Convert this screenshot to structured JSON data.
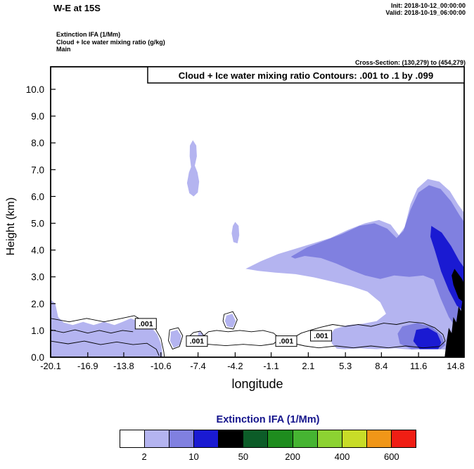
{
  "header": {
    "title": "W-E at 15S",
    "init_label": "Init: 2018-10-12_00:00:00",
    "valid_label": "Valid: 2018-10-19_06:00:00",
    "field_lines": [
      "Extinction IFA  (1/Mm)",
      "Cloud + Ice water mixing ratio  (g/kg)",
      "Main"
    ],
    "cross_section": "Cross-Section: (130,279) to (454,279)"
  },
  "chart_data": {
    "type": "filled-contour-cross-section",
    "title": "Cloud + Ice water mixing ratio Contours: .001 to .1 by .099",
    "fill_field": "Extinction IFA  (1/Mm)",
    "contour_field": "Cloud + Ice water mixing ratio  (g/kg)",
    "xlabel": "longitude",
    "ylabel": "Height (km)",
    "xlim": [
      -20.1,
      15.53
    ],
    "ylim": [
      0,
      10.84
    ],
    "x_ticks": [
      -20.1,
      -16.9,
      -13.8,
      -10.6,
      -7.4,
      -4.2,
      -1.1,
      2.1,
      5.3,
      8.4,
      11.6,
      14.8
    ],
    "x_tick_labels": [
      "-20.1",
      "-16.9",
      "-13.8",
      "-10.6",
      "-7.4",
      "-4.2",
      "-1.1",
      "2.1",
      "5.3",
      "8.4",
      "11.6",
      "14.8"
    ],
    "y_ticks": [
      0,
      1,
      2,
      3,
      4,
      5,
      6,
      7,
      8,
      9,
      10
    ],
    "y_tick_labels": [
      "0.0",
      "1.0",
      "2.0",
      "3.0",
      "4.0",
      "5.0",
      "6.0",
      "7.0",
      "8.0",
      "9.0",
      "10.0"
    ],
    "level_colors": {
      "light": "#b4b4f0",
      "medium": "#8080e0",
      "vivid": "#1a1ad2",
      "black": "#000000"
    },
    "regions": [
      {
        "name": "left-low-cloud-band",
        "level": "light",
        "points": [
          [
            -20.1,
            2.15
          ],
          [
            -19.7,
            2.0
          ],
          [
            -19.45,
            1.5
          ],
          [
            -19.0,
            1.3
          ],
          [
            -18.2,
            1.2
          ],
          [
            -17.3,
            1.32
          ],
          [
            -16.4,
            1.2
          ],
          [
            -15.5,
            1.32
          ],
          [
            -14.6,
            1.2
          ],
          [
            -13.9,
            1.32
          ],
          [
            -13.2,
            1.45
          ],
          [
            -12.6,
            1.35
          ],
          [
            -12.0,
            1.2
          ],
          [
            -11.4,
            1.1
          ],
          [
            -10.9,
            0.85
          ],
          [
            -10.55,
            0.45
          ],
          [
            -10.45,
            0
          ],
          [
            -20.1,
            0
          ]
        ]
      },
      {
        "name": "small-low-blob-a",
        "level": "light",
        "points": [
          [
            -9.75,
            0.95
          ],
          [
            -9.2,
            1.02
          ],
          [
            -8.85,
            0.8
          ],
          [
            -8.95,
            0.45
          ],
          [
            -9.5,
            0.35
          ],
          [
            -9.8,
            0.6
          ]
        ]
      },
      {
        "name": "small-low-blob-b",
        "level": "light",
        "points": [
          [
            -7.35,
            0.95
          ],
          [
            -7.0,
            0.9
          ],
          [
            -6.95,
            0.55
          ],
          [
            -7.3,
            0.5
          ],
          [
            -7.45,
            0.75
          ]
        ]
      },
      {
        "name": "small-low-blob-c",
        "level": "light",
        "points": [
          [
            -4.95,
            1.55
          ],
          [
            -4.45,
            1.62
          ],
          [
            -4.15,
            1.35
          ],
          [
            -4.4,
            1.1
          ],
          [
            -4.9,
            1.15
          ],
          [
            -5.08,
            1.35
          ]
        ]
      },
      {
        "name": "upper-level-blob",
        "level": "light",
        "points": [
          [
            -7.85,
            8.1
          ],
          [
            -7.55,
            7.9
          ],
          [
            -7.5,
            7.5
          ],
          [
            -7.68,
            7.15
          ],
          [
            -7.45,
            6.9
          ],
          [
            -7.3,
            6.55
          ],
          [
            -7.42,
            6.15
          ],
          [
            -7.78,
            6.0
          ],
          [
            -8.15,
            6.12
          ],
          [
            -8.35,
            6.5
          ],
          [
            -8.18,
            6.9
          ],
          [
            -8.0,
            7.1
          ],
          [
            -8.12,
            7.5
          ],
          [
            -8.1,
            7.9
          ]
        ]
      },
      {
        "name": "mid-level-blob",
        "level": "light",
        "points": [
          [
            -4.2,
            5.05
          ],
          [
            -3.9,
            4.9
          ],
          [
            -3.85,
            4.55
          ],
          [
            -4.0,
            4.25
          ],
          [
            -4.35,
            4.3
          ],
          [
            -4.5,
            4.62
          ],
          [
            -4.4,
            4.9
          ]
        ]
      },
      {
        "name": "right-cloud-mass-outer",
        "level": "light",
        "points": [
          [
            -3.3,
            3.3
          ],
          [
            -2.0,
            3.58
          ],
          [
            -0.5,
            3.85
          ],
          [
            1.0,
            4.05
          ],
          [
            2.5,
            4.25
          ],
          [
            4.0,
            4.45
          ],
          [
            5.5,
            4.75
          ],
          [
            7.0,
            5.0
          ],
          [
            8.2,
            5.12
          ],
          [
            9.2,
            4.95
          ],
          [
            9.9,
            4.55
          ],
          [
            10.4,
            4.85
          ],
          [
            10.9,
            5.7
          ],
          [
            11.5,
            6.3
          ],
          [
            12.4,
            6.65
          ],
          [
            13.4,
            6.55
          ],
          [
            14.3,
            6.2
          ],
          [
            15.0,
            5.7
          ],
          [
            15.6,
            5.35
          ],
          [
            15.6,
            0.3
          ],
          [
            14.0,
            0.28
          ],
          [
            12.5,
            0.32
          ],
          [
            11.0,
            0.28
          ],
          [
            9.5,
            0.33
          ],
          [
            8.0,
            0.3
          ],
          [
            6.5,
            0.33
          ],
          [
            5.2,
            0.3
          ],
          [
            4.55,
            0.32
          ],
          [
            4.15,
            0.5
          ],
          [
            3.95,
            0.8
          ],
          [
            4.35,
            1.05
          ],
          [
            5.5,
            1.2
          ],
          [
            6.8,
            1.25
          ],
          [
            8.0,
            1.35
          ],
          [
            8.8,
            1.62
          ],
          [
            8.3,
            2.05
          ],
          [
            7.2,
            2.45
          ],
          [
            5.8,
            2.65
          ],
          [
            4.2,
            2.82
          ],
          [
            2.6,
            2.98
          ],
          [
            1.0,
            3.1
          ],
          [
            -0.8,
            3.16
          ],
          [
            -2.2,
            3.22
          ]
        ]
      },
      {
        "name": "right-cloud-mass-inner",
        "level": "medium",
        "points": [
          [
            0.6,
            3.75
          ],
          [
            2.0,
            4.1
          ],
          [
            3.5,
            4.35
          ],
          [
            5.0,
            4.6
          ],
          [
            6.5,
            4.9
          ],
          [
            7.8,
            5.0
          ],
          [
            8.9,
            4.8
          ],
          [
            9.7,
            4.45
          ],
          [
            10.3,
            4.72
          ],
          [
            10.9,
            5.5
          ],
          [
            11.6,
            6.15
          ],
          [
            12.5,
            6.42
          ],
          [
            13.5,
            6.28
          ],
          [
            14.4,
            5.82
          ],
          [
            15.1,
            5.32
          ],
          [
            15.6,
            5.0
          ],
          [
            15.6,
            0.95
          ],
          [
            14.9,
            1.05
          ],
          [
            14.2,
            1.5
          ],
          [
            13.5,
            2.2
          ],
          [
            12.9,
            2.9
          ],
          [
            12.0,
            3.05
          ],
          [
            10.8,
            3.0
          ],
          [
            9.5,
            3.05
          ],
          [
            8.3,
            2.92
          ],
          [
            7.0,
            3.05
          ],
          [
            5.8,
            3.25
          ],
          [
            4.5,
            3.5
          ],
          [
            3.2,
            3.7
          ],
          [
            1.8,
            3.78
          ],
          [
            0.95,
            3.68
          ]
        ]
      },
      {
        "name": "right-band-inner",
        "level": "medium",
        "points": [
          [
            9.8,
            0.88
          ],
          [
            10.2,
            1.15
          ],
          [
            11.5,
            1.28
          ],
          [
            12.8,
            1.12
          ],
          [
            13.6,
            0.8
          ],
          [
            13.9,
            0.45
          ],
          [
            13.5,
            0.3
          ],
          [
            11.0,
            0.3
          ],
          [
            10.0,
            0.5
          ]
        ]
      },
      {
        "name": "right-edge-vivid-core",
        "level": "vivid",
        "points": [
          [
            12.7,
            4.9
          ],
          [
            13.6,
            4.65
          ],
          [
            14.4,
            4.15
          ],
          [
            15.1,
            3.6
          ],
          [
            15.6,
            3.3
          ],
          [
            15.6,
            1.7
          ],
          [
            14.9,
            1.92
          ],
          [
            14.2,
            2.5
          ],
          [
            13.55,
            3.2
          ],
          [
            13.0,
            4.0
          ],
          [
            12.62,
            4.5
          ]
        ]
      },
      {
        "name": "right-band-vivid",
        "level": "vivid",
        "points": [
          [
            11.4,
            1.02
          ],
          [
            12.4,
            1.1
          ],
          [
            13.2,
            0.9
          ],
          [
            13.55,
            0.55
          ],
          [
            13.3,
            0.3
          ],
          [
            11.7,
            0.3
          ],
          [
            11.15,
            0.6
          ]
        ]
      },
      {
        "name": "right-edge-dark-patch",
        "level": "black",
        "points": [
          [
            14.7,
            3.3
          ],
          [
            15.3,
            2.95
          ],
          [
            15.6,
            2.7
          ],
          [
            15.6,
            2.0
          ],
          [
            15.05,
            2.2
          ],
          [
            14.6,
            2.7
          ],
          [
            14.45,
            3.05
          ]
        ]
      },
      {
        "name": "terrain-silhouette",
        "level": "black",
        "points": [
          [
            13.85,
            0
          ],
          [
            14.0,
            0.55
          ],
          [
            14.2,
            1.1
          ],
          [
            14.45,
            0.9
          ],
          [
            14.6,
            1.5
          ],
          [
            14.85,
            1.3
          ],
          [
            15.05,
            1.9
          ],
          [
            15.25,
            1.72
          ],
          [
            15.4,
            2.2
          ],
          [
            15.6,
            2.38
          ],
          [
            15.6,
            0
          ]
        ]
      }
    ],
    "contour_lines": [
      {
        "closed": false,
        "points": [
          [
            -20.1,
            1.45
          ],
          [
            -18.5,
            1.32
          ],
          [
            -17.0,
            1.45
          ],
          [
            -15.5,
            1.32
          ],
          [
            -14.0,
            1.45
          ],
          [
            -12.9,
            1.55
          ],
          [
            -12.0,
            1.32
          ],
          [
            -11.2,
            1.15
          ],
          [
            -10.6,
            0.7
          ],
          [
            -10.35,
            0.2
          ],
          [
            -10.3,
            0.02
          ]
        ]
      },
      {
        "closed": false,
        "points": [
          [
            -20.1,
            0.6
          ],
          [
            -18.6,
            0.5
          ],
          [
            -17.2,
            0.6
          ],
          [
            -15.8,
            0.47
          ],
          [
            -14.4,
            0.57
          ],
          [
            -13.0,
            0.47
          ],
          [
            -11.8,
            0.52
          ],
          [
            -11.0,
            0.3
          ],
          [
            -10.75,
            0.05
          ]
        ]
      },
      {
        "closed": false,
        "points": [
          [
            -20.1,
            1.02
          ],
          [
            -19.0,
            0.92
          ],
          [
            -18.0,
            1.02
          ],
          [
            -16.9,
            0.9
          ],
          [
            -15.9,
            1.0
          ],
          [
            -14.9,
            0.9
          ],
          [
            -13.9,
            1.0
          ],
          [
            -13.0,
            0.95
          ]
        ]
      },
      {
        "closed": true,
        "points": [
          [
            -8.35,
            0.7
          ],
          [
            -7.8,
            0.92
          ],
          [
            -7.2,
            0.97
          ],
          [
            -6.9,
            0.8
          ],
          [
            -6.5,
            0.95
          ],
          [
            -5.8,
            1.0
          ],
          [
            -4.8,
            0.95
          ],
          [
            -3.8,
            1.0
          ],
          [
            -2.8,
            0.95
          ],
          [
            -1.8,
            1.0
          ],
          [
            -0.9,
            0.9
          ],
          [
            -0.35,
            0.7
          ],
          [
            -0.9,
            0.5
          ],
          [
            -2.0,
            0.43
          ],
          [
            -3.5,
            0.48
          ],
          [
            -5.0,
            0.43
          ],
          [
            -6.5,
            0.48
          ],
          [
            -7.6,
            0.45
          ],
          [
            -8.2,
            0.55
          ]
        ]
      },
      {
        "closed": true,
        "points": [
          [
            0.7,
            0.7
          ],
          [
            1.5,
            0.9
          ],
          [
            2.4,
            1.02
          ],
          [
            3.2,
            1.12
          ],
          [
            4.2,
            1.22
          ],
          [
            5.3,
            1.15
          ],
          [
            6.4,
            1.22
          ],
          [
            7.5,
            1.15
          ],
          [
            8.6,
            1.27
          ],
          [
            9.7,
            1.22
          ],
          [
            10.8,
            1.32
          ],
          [
            12.0,
            1.27
          ],
          [
            13.0,
            1.1
          ],
          [
            13.7,
            0.85
          ],
          [
            13.9,
            0.6
          ],
          [
            13.4,
            0.4
          ],
          [
            12.0,
            0.35
          ],
          [
            10.5,
            0.42
          ],
          [
            9.0,
            0.35
          ],
          [
            7.5,
            0.42
          ],
          [
            6.0,
            0.35
          ],
          [
            4.5,
            0.42
          ],
          [
            3.0,
            0.35
          ],
          [
            1.8,
            0.42
          ],
          [
            1.0,
            0.5
          ]
        ]
      },
      {
        "closed": true,
        "points": [
          [
            -9.85,
            1.02
          ],
          [
            -9.1,
            1.1
          ],
          [
            -8.72,
            0.8
          ],
          [
            -9.0,
            0.4
          ],
          [
            -9.6,
            0.3
          ],
          [
            -9.95,
            0.62
          ]
        ]
      },
      {
        "closed": true,
        "points": [
          [
            -5.15,
            1.6
          ],
          [
            -4.4,
            1.7
          ],
          [
            -4.02,
            1.4
          ],
          [
            -4.35,
            1.05
          ],
          [
            -5.0,
            1.1
          ],
          [
            -5.25,
            1.35
          ]
        ]
      }
    ],
    "contour_labels": [
      {
        "x": -11.9,
        "y": 1.25,
        "text": ".001"
      },
      {
        "x": -7.5,
        "y": 0.6,
        "text": ".001"
      },
      {
        "x": 0.2,
        "y": 0.6,
        "text": ".001"
      },
      {
        "x": 3.2,
        "y": 0.8,
        "text": ".001"
      }
    ],
    "colorbar": {
      "title": "Extinction IFA  (1/Mm)",
      "colors": [
        "#ffffff",
        "#b4b4f0",
        "#8080e0",
        "#1a1ad2",
        "#000000",
        "#0c5c28",
        "#1e8c1e",
        "#46b432",
        "#8cd232",
        "#c8dc28",
        "#f09618",
        "#f01e14"
      ],
      "tick_labels": [
        "2",
        "10",
        "50",
        "200",
        "400",
        "600"
      ],
      "tick_boundary_indices": [
        1,
        3,
        5,
        7,
        9,
        11
      ]
    }
  }
}
